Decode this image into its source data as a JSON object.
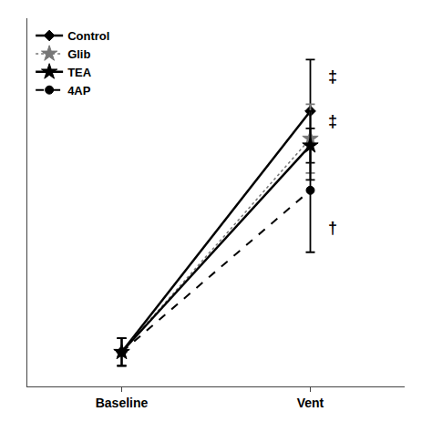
{
  "chart_data": {
    "type": "line",
    "categories": [
      "Baseline",
      "Vent"
    ],
    "series": [
      {
        "name": "Control",
        "values": [
          8,
          78
        ],
        "yerr": [
          4,
          15
        ],
        "color": "#000000",
        "line_style": "solid",
        "marker": "diamond"
      },
      {
        "name": "Glib",
        "values": [
          8,
          70
        ],
        "yerr": [
          4,
          10
        ],
        "color": "#777777",
        "line_style": "dotted",
        "marker": "star"
      },
      {
        "name": "TEA",
        "values": [
          8,
          68
        ],
        "yerr": [
          4,
          10
        ],
        "color": "#000000",
        "line_style": "solid",
        "marker": "star"
      },
      {
        "name": "4AP",
        "values": [
          8,
          55
        ],
        "yerr": [
          4,
          18
        ],
        "color": "#000000",
        "line_style": "dashed",
        "marker": "circle"
      }
    ],
    "annotations": [
      {
        "text": "‡",
        "category": "Vent",
        "y": 88
      },
      {
        "text": "‡",
        "category": "Vent",
        "y": 75
      },
      {
        "text": "†",
        "category": "Vent",
        "y": 44
      }
    ],
    "ylim": [
      -2,
      105
    ],
    "yticks": [],
    "tick_labels": "x",
    "grid": false,
    "legend": "upper left"
  }
}
